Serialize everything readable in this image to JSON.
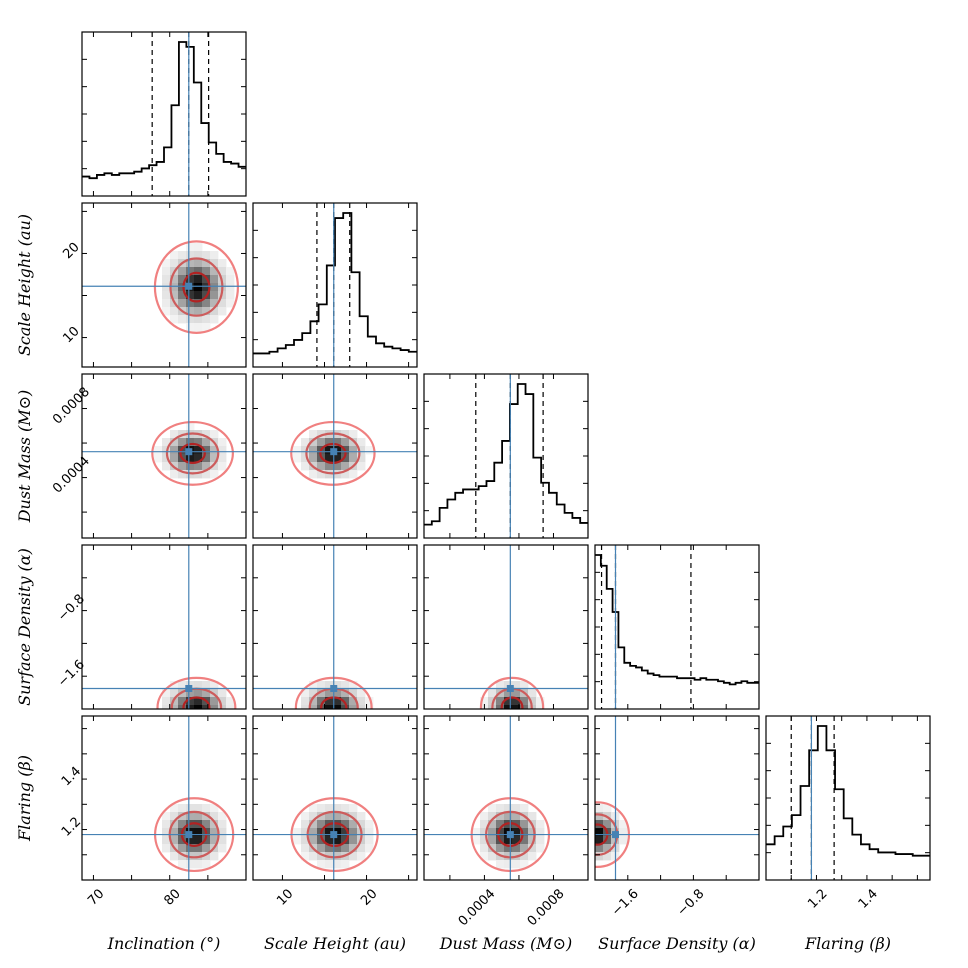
{
  "chart_data": {
    "type": "corner",
    "title": "",
    "truth_color": "#4682b4",
    "contour_colors": [
      "#f08080",
      "#cd5c5c",
      "#b22222"
    ],
    "hist_color": "#000000",
    "parameters": [
      {
        "key": "inclination",
        "label": "Inclination (°)",
        "range": [
          68.5,
          90
        ],
        "ticks": [
          70,
          80
        ],
        "tick_labels": [
          "70",
          "80"
        ],
        "median": 82.5,
        "quantiles": [
          77.7,
          82.5,
          85.1
        ],
        "truth": 82.5,
        "hist": [
          12,
          11,
          13,
          14,
          13,
          14,
          14,
          15,
          17,
          19,
          21,
          30,
          56,
          95,
          92,
          70,
          45,
          33,
          26,
          21,
          20,
          18
        ]
      },
      {
        "key": "scale_height",
        "label": "Scale Height (au)",
        "range": [
          6.5,
          26
        ],
        "ticks": [
          10,
          20
        ],
        "tick_labels": [
          "10",
          "20"
        ],
        "axis_ticks": [
          10,
          20
        ],
        "axis_tick_labels": [
          "10",
          "20"
        ],
        "median": 16.1,
        "quantiles": [
          14.1,
          16.1,
          18.0
        ],
        "truth": 16.1,
        "hist": [
          8,
          8,
          9,
          11,
          13,
          16,
          20,
          27,
          37,
          60,
          88,
          91,
          56,
          30,
          18,
          14,
          12,
          11,
          10,
          9
        ]
      },
      {
        "key": "dust_mass",
        "label": "Dust Mass (M⊙)",
        "range": [
          5e-05,
          0.001
        ],
        "ticks": [
          0.0004,
          0.0008
        ],
        "tick_labels": [
          "0.0004",
          "0.0008"
        ],
        "axis_ticks": [
          0.0004,
          0.0008
        ],
        "axis_tick_labels": [
          "0.0004",
          "0.0008"
        ],
        "median": 0.00055,
        "quantiles": [
          0.00035,
          0.00055,
          0.00074
        ],
        "truth": 0.00055,
        "hist": [
          8,
          10,
          18,
          23,
          27,
          29,
          29,
          31,
          34,
          45,
          58,
          80,
          92,
          86,
          48,
          33,
          27,
          20,
          15,
          12,
          9
        ]
      },
      {
        "key": "surface_density",
        "label": "Surface Density (α)",
        "range": [
          -2.0,
          0
        ],
        "ticks": [
          -1.6,
          -0.8
        ],
        "tick_labels": [
          "−1.6",
          "−0.8"
        ],
        "axis_ticks": [
          -0.8,
          -1.6
        ],
        "axis_tick_labels": [
          "−0.8",
          "−1.6"
        ],
        "median": -1.75,
        "quantiles": [
          -1.92,
          -1.75,
          -0.83
        ],
        "truth": -1.75,
        "hist": [
          100,
          93,
          78,
          63,
          40,
          30,
          28,
          27,
          25,
          23,
          22,
          21,
          21,
          21,
          20,
          20,
          20,
          19,
          20,
          19,
          19,
          18,
          17,
          16,
          17,
          18,
          17,
          17
        ]
      },
      {
        "key": "flaring",
        "label": "Flaring (β)",
        "range": [
          1.0,
          1.65
        ],
        "ticks": [
          1.2,
          1.4
        ],
        "tick_labels": [
          "1.2",
          "1.4"
        ],
        "axis_ticks": [
          1.4,
          1.2
        ],
        "axis_tick_labels": [
          "1.4",
          "1.2"
        ],
        "median": 1.18,
        "quantiles": [
          1.1,
          1.18,
          1.27
        ],
        "truth": 1.18,
        "hist": [
          22,
          27,
          33,
          40,
          58,
          80,
          95,
          80,
          56,
          38,
          28,
          22,
          19,
          17,
          17,
          16,
          16,
          15,
          15
        ]
      }
    ],
    "pairs": [
      {
        "x": "inclination",
        "y": "scale_height",
        "cx": 83.5,
        "cy": 16.0,
        "sx": 1.7,
        "sy": 1.7,
        "levels": [
          1,
          2,
          3.2
        ]
      },
      {
        "x": "inclination",
        "y": "dust_mass",
        "cx": 83.0,
        "cy": 0.00054,
        "sx": 1.6,
        "sy": 5.5e-05,
        "levels": [
          1,
          2.1,
          3.3
        ]
      },
      {
        "x": "scale_height",
        "y": "dust_mass",
        "cx": 16.0,
        "cy": 0.00054,
        "sx": 1.5,
        "sy": 5.5e-05,
        "levels": [
          1,
          2.1,
          3.3
        ]
      },
      {
        "x": "inclination",
        "y": "surface_density",
        "cx": 83.5,
        "cy": -1.98,
        "sx": 1.7,
        "sy": 0.12,
        "levels": [
          1,
          1.9,
          3.0
        ]
      },
      {
        "x": "scale_height",
        "y": "surface_density",
        "cx": 16.1,
        "cy": -1.98,
        "sx": 1.5,
        "sy": 0.12,
        "levels": [
          1,
          1.9,
          3.0
        ]
      },
      {
        "x": "dust_mass",
        "y": "surface_density",
        "cx": 0.00056,
        "cy": -1.98,
        "sx": 6e-05,
        "sy": 0.12,
        "levels": [
          1,
          1.9,
          3.0
        ]
      },
      {
        "x": "inclination",
        "y": "flaring",
        "cx": 83.2,
        "cy": 1.18,
        "sx": 1.6,
        "sy": 0.045,
        "levels": [
          1,
          2.0,
          3.2
        ]
      },
      {
        "x": "scale_height",
        "y": "flaring",
        "cx": 16.2,
        "cy": 1.18,
        "sx": 1.6,
        "sy": 0.045,
        "levels": [
          1,
          2.0,
          3.2
        ]
      },
      {
        "x": "dust_mass",
        "y": "flaring",
        "cx": 0.00055,
        "cy": 1.18,
        "sx": 7e-05,
        "sy": 0.045,
        "levels": [
          1,
          2.0,
          3.2
        ]
      },
      {
        "x": "surface_density",
        "y": "flaring",
        "cx": -1.97,
        "cy": 1.18,
        "sx": 0.12,
        "sy": 0.04,
        "levels": [
          1,
          2.0,
          3.2
        ]
      }
    ]
  }
}
